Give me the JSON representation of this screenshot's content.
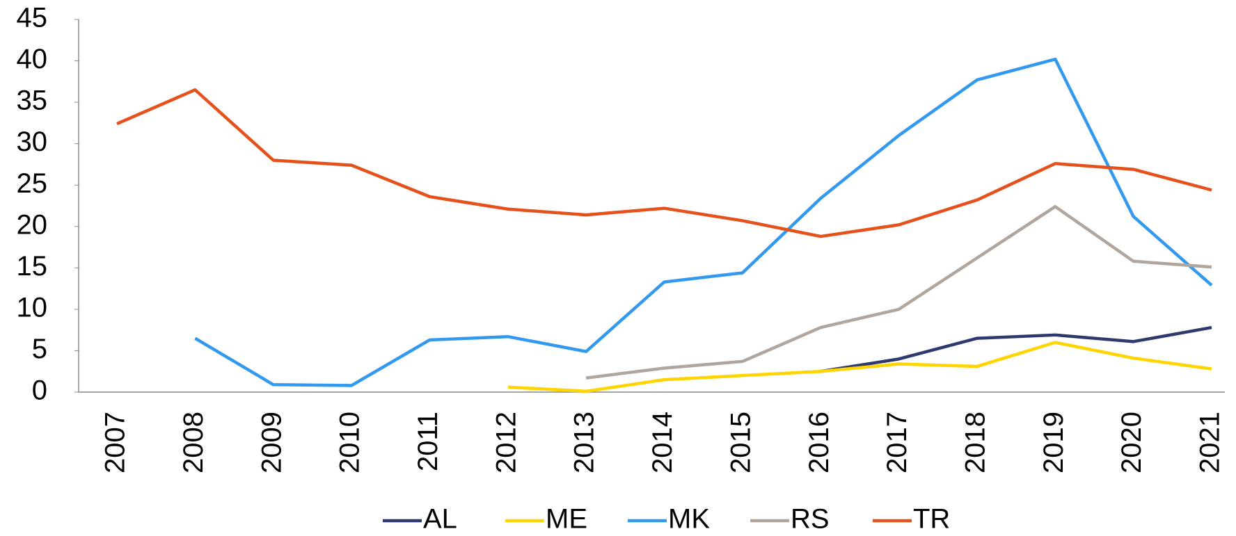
{
  "chart_data": {
    "type": "line",
    "categories": [
      "2007",
      "2008",
      "2009",
      "2010",
      "2011",
      "2012",
      "2013",
      "2014",
      "2015",
      "2016",
      "2017",
      "2018",
      "2019",
      "2020",
      "2021"
    ],
    "series": [
      {
        "name": "AL",
        "color": "#2e3a6e",
        "values": [
          null,
          null,
          null,
          null,
          null,
          null,
          null,
          null,
          null,
          2.5,
          4.0,
          6.5,
          6.9,
          6.1,
          7.8
        ]
      },
      {
        "name": "ME",
        "color": "#ffd400",
        "values": [
          null,
          null,
          null,
          null,
          null,
          0.6,
          0.1,
          1.5,
          2.0,
          2.5,
          3.4,
          3.1,
          6.0,
          4.1,
          2.8
        ]
      },
      {
        "name": "MK",
        "color": "#3399ee",
        "values": [
          null,
          6.5,
          0.9,
          0.8,
          6.3,
          6.7,
          4.9,
          13.3,
          14.4,
          23.4,
          31.0,
          37.7,
          40.2,
          21.2,
          12.9
        ]
      },
      {
        "name": "RS",
        "color": "#b0a69d",
        "values": [
          null,
          null,
          null,
          null,
          null,
          null,
          1.7,
          2.9,
          3.7,
          7.8,
          10.0,
          16.2,
          22.4,
          15.8,
          15.1
        ]
      },
      {
        "name": "TR",
        "color": "#e5501b",
        "values": [
          32.4,
          36.5,
          28.0,
          27.4,
          23.6,
          22.1,
          21.4,
          22.2,
          20.7,
          18.8,
          20.2,
          23.2,
          27.6,
          26.9,
          24.4
        ]
      }
    ],
    "ylim": [
      0,
      45
    ],
    "yticks": [
      0,
      5,
      10,
      15,
      20,
      25,
      30,
      35,
      40,
      45
    ],
    "grid": false,
    "legend": "bottom"
  }
}
